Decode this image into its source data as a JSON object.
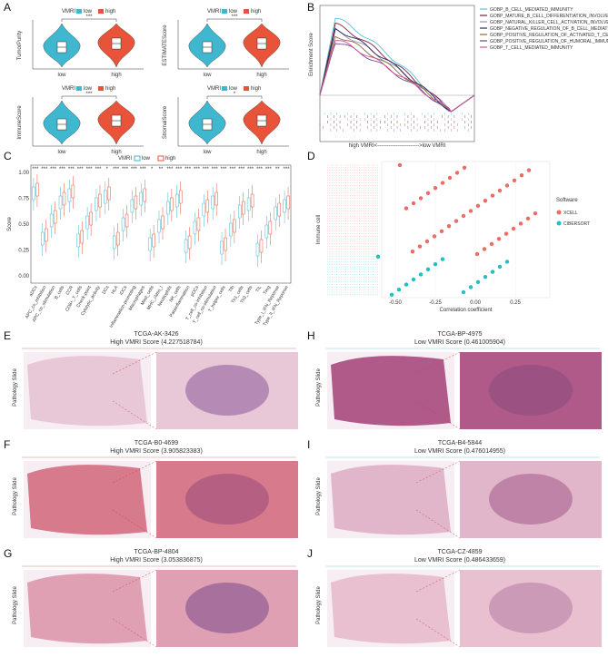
{
  "panels": {
    "a": {
      "label": "A",
      "legend_title": "VMRI",
      "legend": [
        "low",
        "high"
      ],
      "colors": [
        "#3fb7ce",
        "#e8533a"
      ],
      "plots": [
        {
          "y_label": "TumorPurity",
          "categories": [
            "low",
            "high"
          ],
          "significance": "***"
        },
        {
          "y_label": "ESTIMATEScore",
          "categories": [
            "low",
            "high"
          ],
          "significance": "***"
        },
        {
          "y_label": "ImmuneScore",
          "categories": [
            "low",
            "high"
          ],
          "significance": "***"
        },
        {
          "y_label": "StromalScore",
          "categories": [
            "low",
            "high"
          ],
          "significance": "*"
        }
      ]
    },
    "b": {
      "label": "B",
      "y_label": "Enrichment Score",
      "x_label": "high VMRI<----------------------->low VMRI",
      "gene_sets": [
        {
          "name": "GOBP_B_CELL_MEDIATED_IMMUNITY",
          "color": "#5bc0de"
        },
        {
          "name": "GOBP_MATURE_B_CELL_DIFFERENTIATION_INVOLVED_IN_IMMUNE_RESPONSE",
          "color": "#7a1f3d"
        },
        {
          "name": "GOBP_NATURAL_KILLER_CELL_ACTIVATION_INVOLVED_IN_IMMUNE_RESPONSE",
          "color": "#9b8fc9"
        },
        {
          "name": "GOBP_NEGATIVE_REGULATION_OF_B_CELL_MEDIATED_IMMUNITY",
          "color": "#2a2a55"
        },
        {
          "name": "GOBP_POSITIVE_REGULATION_OF_ACTIVATED_T_CELL_PROLIFERATION",
          "color": "#8a6a3a"
        },
        {
          "name": "GOBP_POSITIVE_REGULATION_OF_HUMORAL_IMMUNE_RESPONSE",
          "color": "#6a4a8a"
        },
        {
          "name": "GOBP_T_CELL_MEDIATED_IMMUNITY",
          "color": "#d6509a"
        }
      ]
    },
    "c": {
      "label": "C",
      "legend_title": "VMRI",
      "legend": [
        "low",
        "high"
      ],
      "y_label": "Score",
      "yticks": [
        "0.00",
        "0.25",
        "0.50",
        "0.75",
        "1.00"
      ],
      "categories": [
        "aDCs",
        "APC_co_inhibition",
        "APC_co_stimulation",
        "B_cells",
        "CCR",
        "CD8+_T_cells",
        "Check-point",
        "Cytolytic_activity",
        "DCs",
        "HLA",
        "iDCs",
        "Inflammation-promoting",
        "Macrophages",
        "Mast_cells",
        "MHC_class_I",
        "Neutrophils",
        "NK_cells",
        "Parainflammation",
        "pDCs",
        "T_cell_co-inhibition",
        "T_cell_co-stimulation",
        "T_helper_cells",
        "Tfh",
        "Th1_cells",
        "Th2_cells",
        "TIL",
        "Treg",
        "Type_I_IFN_Reponse",
        "Type_II_IFN_Reponse"
      ],
      "significance": [
        "***",
        "***",
        "***",
        "***",
        "***",
        "***",
        "***",
        "***",
        "*",
        "***",
        "***",
        "***",
        "***",
        "*",
        "**",
        "***",
        "***",
        "***",
        "***",
        "***",
        "***",
        "***",
        "***",
        "***",
        "***",
        "***",
        "***",
        "**",
        "***"
      ]
    },
    "d": {
      "label": "D",
      "y_label": "Immune cell",
      "x_label": "Correlation coefficient",
      "xticks": [
        "-0.50",
        "-0.25",
        "0.00",
        "0.25"
      ],
      "legend_title": "Software",
      "legend": [
        "XCELL",
        "CIBERSORT"
      ],
      "colors": [
        "#ec6b62",
        "#1fbfc3"
      ]
    },
    "slides": [
      {
        "label": "E",
        "id": "TCGA-AK-3426",
        "score": "High VMRI Score (4.227518784)",
        "side_label": "Pathology Slide"
      },
      {
        "label": "F",
        "id": "TCGA-B0-4699",
        "score": "High VMRI Score (3.905823383)",
        "side_label": "Pathology Slide"
      },
      {
        "label": "G",
        "id": "TCGA-BP-4804",
        "score": "High VMRI Score (3.053836875)",
        "side_label": "Pathology Slide"
      },
      {
        "label": "H",
        "id": "TCGA-BP-4975",
        "score": "Low VMRI Score (0.461005904)",
        "side_label": "Pathology Slide"
      },
      {
        "label": "I",
        "id": "TCGA-B4-5844",
        "score": "Low VMRI Score (0.476014955)",
        "side_label": "Pathology Slide"
      },
      {
        "label": "J",
        "id": "TCGA-CZ-4859",
        "score": "Low VMRI Score (0.486433659)",
        "side_label": "Pathology Slide"
      }
    ]
  }
}
